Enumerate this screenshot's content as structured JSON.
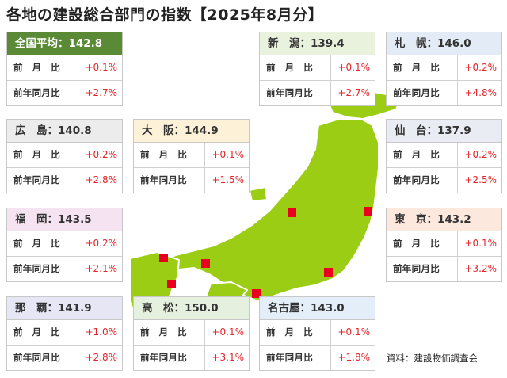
{
  "title": "各地の建設総合部門の指数【2025年8月分】",
  "source": "資料：建設物価調査会",
  "row_labels": {
    "mom": "前　月　比",
    "yoy": "前年同月比"
  },
  "colors": {
    "land": "#9acd14",
    "land_edge": "#ffffff",
    "marker": "#e8001e",
    "value_text": "#e3262a"
  },
  "cards": [
    {
      "id": "national",
      "header": "全国平均：142.8",
      "mom": "+0.1%",
      "yoy": "+2.7%",
      "header_bg": "#5a8a36",
      "header_fg": "#ffffff"
    },
    {
      "id": "niigata",
      "header": "新　潟：139.4",
      "mom": "+0.1%",
      "yoy": "+2.7%",
      "header_bg": "#e9f2dd",
      "header_fg": "#333333"
    },
    {
      "id": "sapporo",
      "header": "札　幌：146.0",
      "mom": "+0.2%",
      "yoy": "+4.8%",
      "header_bg": "#e3ecf6",
      "header_fg": "#333333"
    },
    {
      "id": "hiroshima",
      "header": "広　島：140.8",
      "mom": "+0.2%",
      "yoy": "+2.8%",
      "header_bg": "#ececec",
      "header_fg": "#333333"
    },
    {
      "id": "osaka",
      "header": "大　阪：144.9",
      "mom": "+0.1%",
      "yoy": "+1.5%",
      "header_bg": "#fdf1d8",
      "header_fg": "#333333"
    },
    {
      "id": "sendai",
      "header": "仙　台：137.9",
      "mom": "+0.2%",
      "yoy": "+2.5%",
      "header_bg": "#e9ecf2",
      "header_fg": "#333333"
    },
    {
      "id": "fukuoka",
      "header": "福　岡：143.5",
      "mom": "+0.2%",
      "yoy": "+2.1%",
      "header_bg": "#f6e3f1",
      "header_fg": "#333333"
    },
    {
      "id": "tokyo",
      "header": "東　京：143.2",
      "mom": "+0.1%",
      "yoy": "+3.2%",
      "header_bg": "#fde8de",
      "header_fg": "#333333"
    },
    {
      "id": "naha",
      "header": "那　覇：141.9",
      "mom": "+1.0%",
      "yoy": "+2.8%",
      "header_bg": "#e6e6f4",
      "header_fg": "#333333"
    },
    {
      "id": "takamatsu",
      "header": "高　松：150.0",
      "mom": "+0.1%",
      "yoy": "+3.1%",
      "header_bg": "#e6f0de",
      "header_fg": "#333333"
    },
    {
      "id": "nagoya",
      "header": "名古屋：143.0",
      "mom": "+0.1%",
      "yoy": "+1.8%",
      "header_bg": "#e3eef8",
      "header_fg": "#333333"
    }
  ]
}
